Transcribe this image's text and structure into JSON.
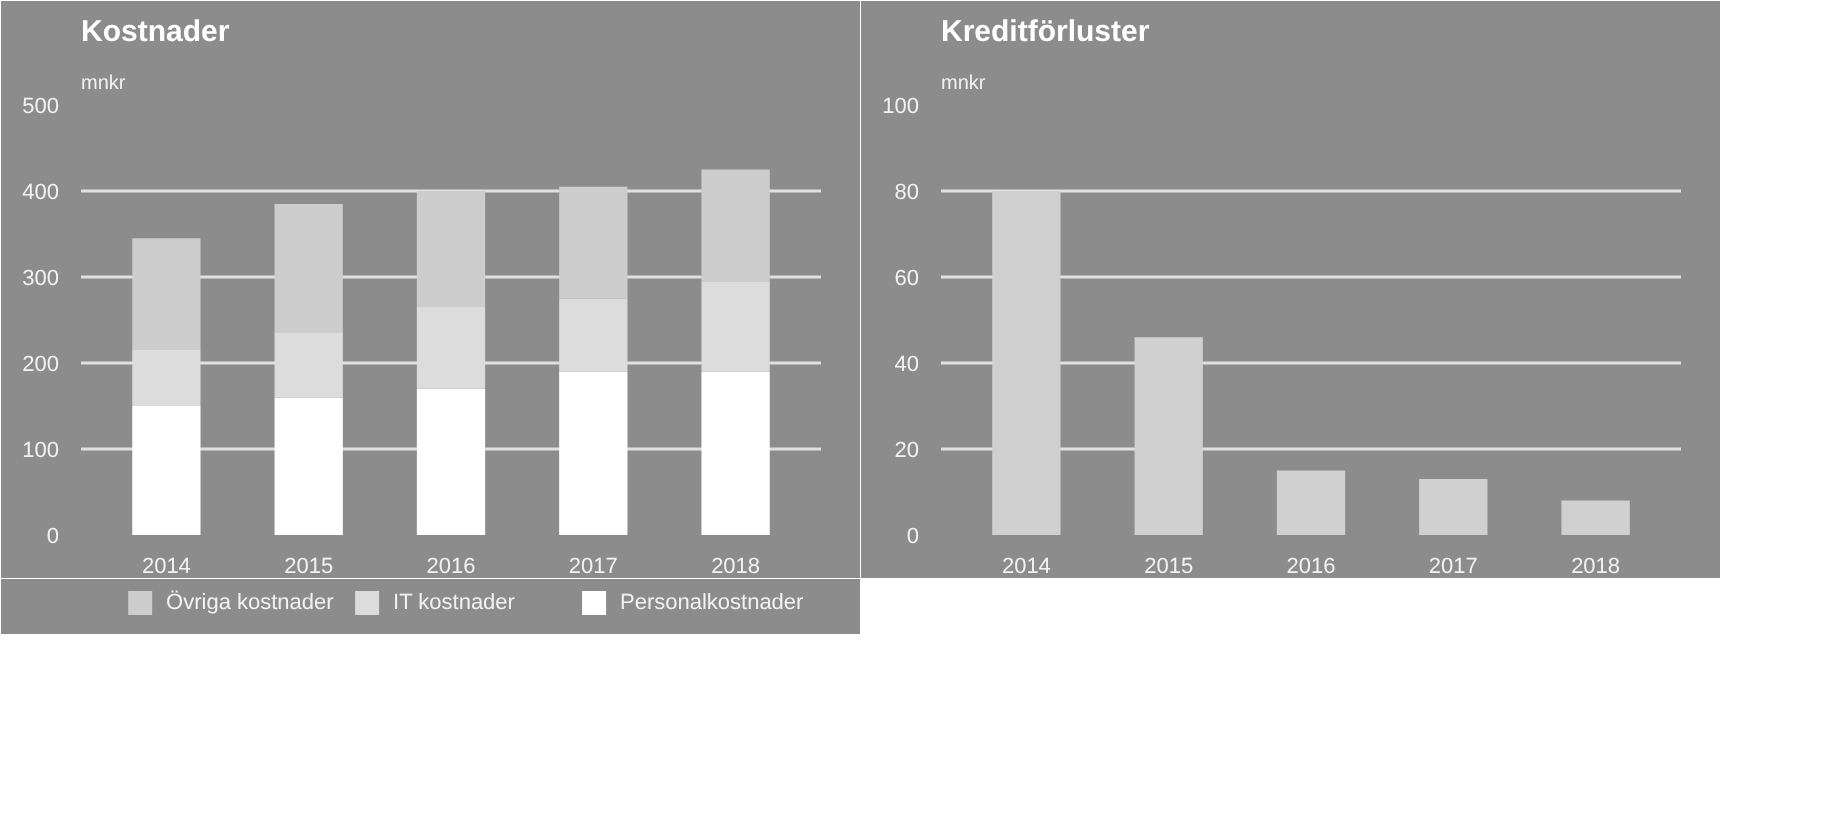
{
  "chart_data": [
    {
      "type": "bar",
      "title": "Kostnader",
      "ylabel": "mnkr",
      "stacked": true,
      "categories": [
        "2014",
        "2015",
        "2016",
        "2017",
        "2018"
      ],
      "ylim": [
        0,
        500
      ],
      "yticks": [
        0,
        100,
        200,
        300,
        400,
        500
      ],
      "grid": "y",
      "legend": "bottom",
      "series": [
        {
          "name": "Personalkostnader",
          "color": "#ffffff",
          "values": [
            150,
            160,
            170,
            190,
            190
          ]
        },
        {
          "name": "IT kostnader",
          "color": "#dcdcdc",
          "values": [
            65,
            75,
            95,
            85,
            105
          ]
        },
        {
          "name": "Övriga kostnader",
          "color": "#cdcdcd",
          "values": [
            130,
            150,
            135,
            130,
            130
          ]
        }
      ]
    },
    {
      "type": "bar",
      "title": "Kreditförluster",
      "ylabel": "mnkr",
      "categories": [
        "2014",
        "2015",
        "2016",
        "2017",
        "2018"
      ],
      "ylim": [
        0,
        100
      ],
      "yticks": [
        0,
        20,
        40,
        60,
        80,
        100
      ],
      "grid": "y",
      "series": [
        {
          "color": "#d0d0d0",
          "values": [
            80,
            46,
            15,
            13,
            8
          ]
        }
      ]
    }
  ]
}
